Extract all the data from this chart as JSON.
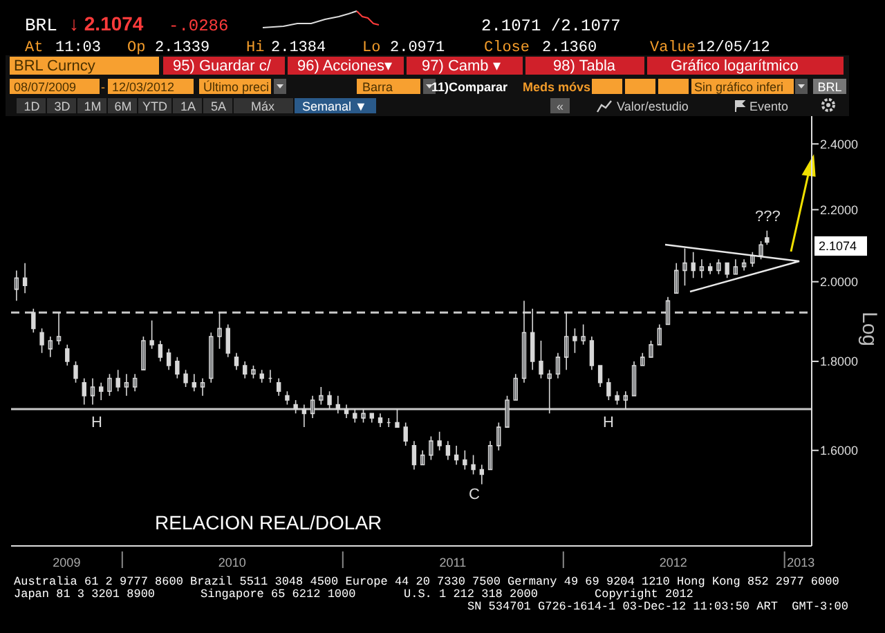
{
  "chart_data": {
    "type": "candlestick",
    "ylabel": "Log",
    "log": true,
    "ylim": [
      1.41,
      2.49
    ],
    "yticks": [
      {
        "value": 1.6,
        "label": "1.6000"
      },
      {
        "value": 1.8,
        "label": "1.8000"
      },
      {
        "value": 2.0,
        "label": "2.0000"
      },
      {
        "value": 2.2,
        "label": "2.2000"
      },
      {
        "value": 2.4,
        "label": "2.4000"
      }
    ],
    "xlim": [
      "2009-07-01",
      "2013-02-15"
    ],
    "xticks": [
      {
        "value": "2009-10-01",
        "label": "2009"
      },
      {
        "value": "2010-01-01",
        "label": null
      },
      {
        "value": "2010-07-02",
        "label": "2010"
      },
      {
        "value": "2011-01-01",
        "label": null
      },
      {
        "value": "2011-07-02",
        "label": "2011"
      },
      {
        "value": "2012-01-01",
        "label": null
      },
      {
        "value": "2012-07-01",
        "label": "2012"
      },
      {
        "value": "2013-01-01",
        "label": null
      },
      {
        "value": "2013-01-28",
        "label": "2013"
      }
    ],
    "color": "#d8d8d8",
    "x": [
      "2009-07-10",
      "2009-07-24",
      "2009-08-07",
      "2009-08-21",
      "2009-09-04",
      "2009-09-18",
      "2009-10-02",
      "2009-10-16",
      "2009-10-30",
      "2009-11-13",
      "2009-11-27",
      "2009-12-11",
      "2009-12-25",
      "2010-01-08",
      "2010-01-22",
      "2010-02-05",
      "2010-02-19",
      "2010-03-05",
      "2010-03-19",
      "2010-04-02",
      "2010-04-16",
      "2010-04-30",
      "2010-05-14",
      "2010-05-28",
      "2010-06-11",
      "2010-06-25",
      "2010-07-09",
      "2010-07-23",
      "2010-08-06",
      "2010-08-20",
      "2010-09-03",
      "2010-09-17",
      "2010-10-01",
      "2010-10-15",
      "2010-10-29",
      "2010-11-12",
      "2010-11-26",
      "2010-12-10",
      "2010-12-24",
      "2011-01-07",
      "2011-01-21",
      "2011-02-04",
      "2011-02-18",
      "2011-03-04",
      "2011-03-18",
      "2011-04-01",
      "2011-04-15",
      "2011-04-29",
      "2011-05-13",
      "2011-05-27",
      "2011-06-10",
      "2011-06-24",
      "2011-07-08",
      "2011-07-22",
      "2011-08-05",
      "2011-08-19",
      "2011-09-02",
      "2011-09-16",
      "2011-09-30",
      "2011-10-14",
      "2011-10-28",
      "2011-11-11",
      "2011-11-25",
      "2011-12-09",
      "2011-12-23",
      "2012-01-06",
      "2012-01-20",
      "2012-02-03",
      "2012-02-17",
      "2012-03-02",
      "2012-03-16",
      "2012-03-30",
      "2012-04-13",
      "2012-04-27",
      "2012-05-11",
      "2012-05-25",
      "2012-06-08",
      "2012-06-22",
      "2012-07-06",
      "2012-07-20",
      "2012-08-03",
      "2012-08-17",
      "2012-08-31",
      "2012-09-14",
      "2012-09-28",
      "2012-10-12",
      "2012-10-26",
      "2012-11-09",
      "2012-11-23",
      "2012-12-03"
    ],
    "ohlc": [
      [
        1.98,
        2.03,
        1.95,
        2.01
      ],
      [
        2.01,
        2.05,
        1.97,
        1.99
      ],
      [
        1.92,
        1.93,
        1.87,
        1.88
      ],
      [
        1.87,
        1.88,
        1.82,
        1.84
      ],
      [
        1.83,
        1.86,
        1.81,
        1.85
      ],
      [
        1.85,
        1.92,
        1.84,
        1.86
      ],
      [
        1.83,
        1.84,
        1.79,
        1.8
      ],
      [
        1.79,
        1.8,
        1.75,
        1.76
      ],
      [
        1.75,
        1.76,
        1.7,
        1.72
      ],
      [
        1.72,
        1.76,
        1.7,
        1.74
      ],
      [
        1.74,
        1.75,
        1.71,
        1.73
      ],
      [
        1.73,
        1.77,
        1.72,
        1.76
      ],
      [
        1.76,
        1.78,
        1.73,
        1.74
      ],
      [
        1.74,
        1.77,
        1.72,
        1.75
      ],
      [
        1.74,
        1.77,
        1.73,
        1.76
      ],
      [
        1.78,
        1.86,
        1.78,
        1.85
      ],
      [
        1.85,
        1.9,
        1.83,
        1.84
      ],
      [
        1.84,
        1.85,
        1.8,
        1.81
      ],
      [
        1.82,
        1.83,
        1.78,
        1.79
      ],
      [
        1.8,
        1.81,
        1.76,
        1.77
      ],
      [
        1.77,
        1.78,
        1.74,
        1.75
      ],
      [
        1.75,
        1.77,
        1.73,
        1.74
      ],
      [
        1.74,
        1.76,
        1.72,
        1.75
      ],
      [
        1.76,
        1.87,
        1.75,
        1.86
      ],
      [
        1.86,
        1.92,
        1.83,
        1.88
      ],
      [
        1.88,
        1.89,
        1.81,
        1.82
      ],
      [
        1.81,
        1.82,
        1.78,
        1.79
      ],
      [
        1.79,
        1.8,
        1.76,
        1.77
      ],
      [
        1.77,
        1.79,
        1.76,
        1.78
      ],
      [
        1.77,
        1.78,
        1.75,
        1.76
      ],
      [
        1.76,
        1.78,
        1.75,
        1.76
      ],
      [
        1.75,
        1.76,
        1.72,
        1.73
      ],
      [
        1.72,
        1.73,
        1.7,
        1.71
      ],
      [
        1.7,
        1.71,
        1.68,
        1.69
      ],
      [
        1.69,
        1.7,
        1.65,
        1.68
      ],
      [
        1.68,
        1.72,
        1.67,
        1.71
      ],
      [
        1.71,
        1.74,
        1.7,
        1.72
      ],
      [
        1.72,
        1.73,
        1.69,
        1.7
      ],
      [
        1.7,
        1.72,
        1.68,
        1.69
      ],
      [
        1.69,
        1.7,
        1.67,
        1.68
      ],
      [
        1.68,
        1.69,
        1.66,
        1.67
      ],
      [
        1.67,
        1.69,
        1.66,
        1.68
      ],
      [
        1.68,
        1.68,
        1.66,
        1.67
      ],
      [
        1.67,
        1.68,
        1.65,
        1.66
      ],
      [
        1.66,
        1.67,
        1.65,
        1.66
      ],
      [
        1.66,
        1.69,
        1.65,
        1.65
      ],
      [
        1.65,
        1.66,
        1.61,
        1.62
      ],
      [
        1.61,
        1.62,
        1.56,
        1.57
      ],
      [
        1.57,
        1.6,
        1.57,
        1.59
      ],
      [
        1.59,
        1.63,
        1.58,
        1.62
      ],
      [
        1.62,
        1.64,
        1.6,
        1.61
      ],
      [
        1.61,
        1.62,
        1.58,
        1.59
      ],
      [
        1.59,
        1.61,
        1.57,
        1.58
      ],
      [
        1.58,
        1.6,
        1.56,
        1.57
      ],
      [
        1.57,
        1.59,
        1.55,
        1.56
      ],
      [
        1.56,
        1.57,
        1.53,
        1.55
      ],
      [
        1.56,
        1.62,
        1.56,
        1.61
      ],
      [
        1.61,
        1.66,
        1.6,
        1.65
      ],
      [
        1.65,
        1.72,
        1.65,
        1.71
      ],
      [
        1.71,
        1.77,
        1.71,
        1.76
      ],
      [
        1.76,
        1.95,
        1.75,
        1.87
      ],
      [
        1.87,
        1.93,
        1.78,
        1.8
      ],
      [
        1.8,
        1.85,
        1.76,
        1.77
      ],
      [
        1.76,
        1.78,
        1.68,
        1.77
      ],
      [
        1.77,
        1.82,
        1.76,
        1.81
      ],
      [
        1.81,
        1.92,
        1.78,
        1.86
      ],
      [
        1.86,
        1.88,
        1.82,
        1.85
      ],
      [
        1.85,
        1.89,
        1.84,
        1.86
      ],
      [
        1.85,
        1.86,
        1.78,
        1.79
      ],
      [
        1.79,
        1.79,
        1.74,
        1.75
      ],
      [
        1.75,
        1.76,
        1.71,
        1.72
      ],
      [
        1.72,
        1.73,
        1.7,
        1.71
      ],
      [
        1.71,
        1.73,
        1.69,
        1.72
      ],
      [
        1.72,
        1.8,
        1.72,
        1.79
      ],
      [
        1.79,
        1.82,
        1.79,
        1.81
      ],
      [
        1.81,
        1.85,
        1.81,
        1.84
      ],
      [
        1.84,
        1.89,
        1.84,
        1.88
      ],
      [
        1.89,
        1.96,
        1.89,
        1.95
      ],
      [
        1.97,
        2.05,
        1.97,
        2.03
      ],
      [
        2.03,
        2.09,
        1.99,
        2.05
      ],
      [
        2.05,
        2.08,
        2.01,
        2.03
      ],
      [
        2.03,
        2.06,
        2.01,
        2.04
      ],
      [
        2.04,
        2.05,
        2.02,
        2.03
      ],
      [
        2.03,
        2.06,
        2.02,
        2.05
      ],
      [
        2.05,
        2.05,
        2.01,
        2.02
      ],
      [
        2.02,
        2.06,
        2.02,
        2.04
      ],
      [
        2.04,
        2.06,
        2.03,
        2.05
      ],
      [
        2.05,
        2.08,
        2.04,
        2.07
      ],
      [
        2.07,
        2.11,
        2.06,
        2.1
      ],
      [
        2.12,
        2.14,
        2.1,
        2.1074
      ]
    ],
    "ref_lines": [
      {
        "axis": "y",
        "value": 1.92,
        "line_style": "dashed",
        "color": "#c8c8c8"
      },
      {
        "axis": "y",
        "value": 1.69,
        "line_style": "solid",
        "color": "#c8c8c8"
      }
    ],
    "annotations": [
      "BRL",
      "↓ 2.1074",
      "-.0286",
      "2.1071 /2.1077",
      "At",
      "11:03",
      "Op",
      "2.1339",
      "Hi",
      "2.1384",
      "Lo",
      "2.0971",
      "Close",
      "2.1360",
      "Value",
      "12/05/12",
      "BRL Curncy",
      "95) Guardar c/",
      "96) Acciones▾",
      "97) Camb ▾",
      "98) Tabla",
      "Gráfico logarítmico",
      "08/07/2009",
      "-",
      "12/03/2012",
      "Último preci",
      "Barra",
      "11)Comparar",
      "Meds móvs",
      "Sin gráfico inferi",
      "BRL",
      "1D",
      "3D",
      "1M",
      "6M",
      "YTD",
      "1A",
      "5A",
      "Máx",
      "Semanal ▼",
      "«",
      "Valor/estudio",
      "Evento",
      "RELACION REAL/DOLAR",
      "Australia 61 2 9777 8600 Brazil 5511 3048 4500 Europe 44 20 7330 7500 Germany 49 69 9204 1210 Hong Kong 852 2977 6000",
      "Japan 81 3 3201 8900",
      "Singapore 65 6212 1000",
      "U.S. 1 212 318 2000",
      "Copyright 2012",
      "SN 534701 G726-1614-1 03-Dec-12 11:03:50 ART  GMT-3:00",
      "???",
      "H",
      "H",
      "C",
      "2.1074"
    ]
  }
}
